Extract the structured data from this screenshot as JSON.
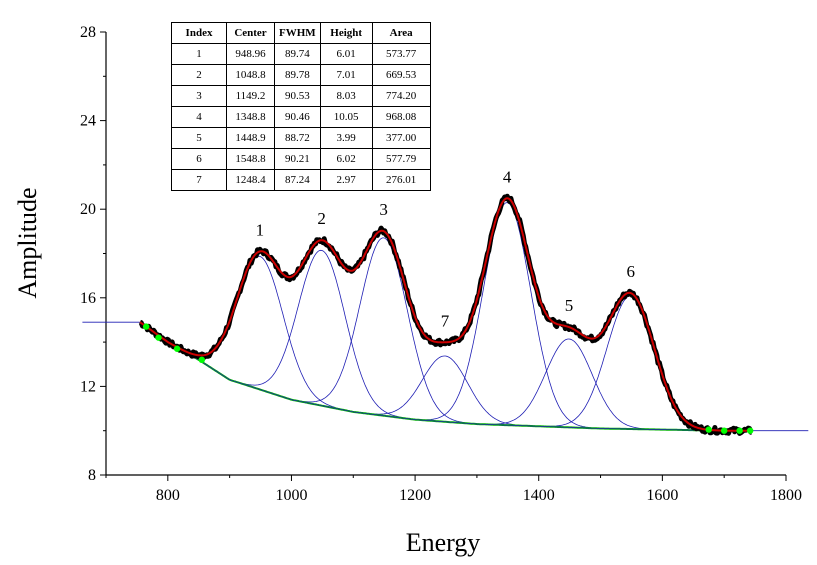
{
  "chart_data": {
    "type": "line",
    "title": "",
    "xlabel": "Energy",
    "ylabel": "Amplitude",
    "xlim": [
      700,
      1800
    ],
    "ylim": [
      8,
      28
    ],
    "xticks": [
      800,
      1000,
      1200,
      1400,
      1600,
      1800
    ],
    "yticks": [
      8,
      12,
      16,
      20,
      24,
      28
    ],
    "grid": false,
    "baseline": {
      "x": [
        755,
        800,
        850,
        900,
        1000,
        1100,
        1200,
        1300,
        1400,
        1500,
        1600,
        1700,
        1745
      ],
      "y": [
        14.9,
        14.0,
        13.2,
        12.3,
        11.4,
        10.85,
        10.5,
        10.3,
        10.2,
        10.1,
        10.05,
        10.0,
        10.0
      ]
    },
    "baseline_anchor_points": {
      "x": [
        765,
        785,
        815,
        855,
        1675,
        1700,
        1725,
        1742
      ],
      "y": [
        14.7,
        14.2,
        13.7,
        13.2,
        10.05,
        10.0,
        10.0,
        10.0
      ]
    },
    "peak_labels": [
      "1",
      "2",
      "3",
      "4",
      "5",
      "6",
      "7"
    ],
    "peaks": [
      {
        "index": 1,
        "center": 948.96,
        "fwhm": 89.74,
        "height": 6.01,
        "area": 573.77
      },
      {
        "index": 2,
        "center": 1048.8,
        "fwhm": 89.78,
        "height": 7.01,
        "area": 669.53
      },
      {
        "index": 3,
        "center": 1149.2,
        "fwhm": 90.53,
        "height": 8.03,
        "area": 774.2
      },
      {
        "index": 4,
        "center": 1348.8,
        "fwhm": 90.46,
        "height": 10.05,
        "area": 968.08
      },
      {
        "index": 5,
        "center": 1448.9,
        "fwhm": 88.72,
        "height": 3.99,
        "area": 377.0
      },
      {
        "index": 6,
        "center": 1548.8,
        "fwhm": 90.21,
        "height": 6.02,
        "area": 577.79
      },
      {
        "index": 7,
        "center": 1248.4,
        "fwhm": 87.24,
        "height": 2.97,
        "area": 276.01
      }
    ],
    "colors": {
      "data": "#000000",
      "fit": "#cc0000",
      "peaks": "#1f1fb4",
      "baseline": "#00b000",
      "anchors": "#00ff00"
    }
  },
  "table": {
    "headers": [
      "Index",
      "Center",
      "FWHM",
      "Height",
      "Area"
    ],
    "rows": [
      [
        "1",
        "948.96",
        "89.74",
        "6.01",
        "573.77"
      ],
      [
        "2",
        "1048.8",
        "89.78",
        "7.01",
        "669.53"
      ],
      [
        "3",
        "1149.2",
        "90.53",
        "8.03",
        "774.20"
      ],
      [
        "4",
        "1348.8",
        "90.46",
        "10.05",
        "968.08"
      ],
      [
        "5",
        "1448.9",
        "88.72",
        "3.99",
        "377.00"
      ],
      [
        "6",
        "1548.8",
        "90.21",
        "6.02",
        "577.79"
      ],
      [
        "7",
        "1248.4",
        "87.24",
        "2.97",
        "276.01"
      ]
    ]
  }
}
